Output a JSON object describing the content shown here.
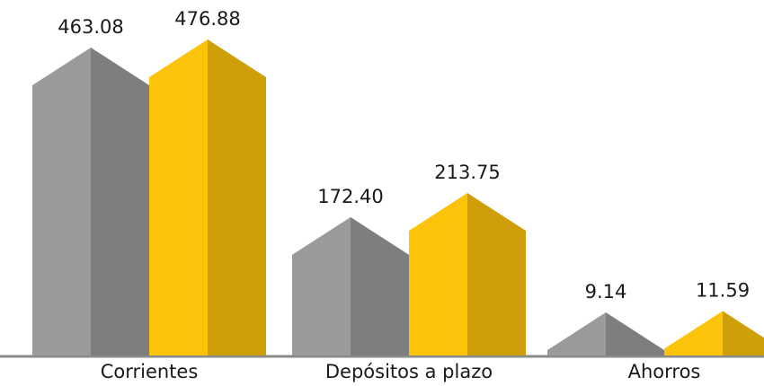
{
  "chart_data": {
    "type": "bar",
    "categories": [
      "Corrientes",
      "Depósitos a plazo",
      "Ahorros"
    ],
    "series": [
      {
        "color": "#9a9a9a",
        "values": [
          463.08,
          172.4,
          9.14
        ],
        "value_labels": [
          "463.08",
          "172.40",
          "9.14"
        ]
      },
      {
        "color": "#fcc30b",
        "values": [
          476.88,
          213.75,
          11.59
        ],
        "value_labels": [
          "476.88",
          "213.75",
          "11.59"
        ]
      }
    ]
  }
}
